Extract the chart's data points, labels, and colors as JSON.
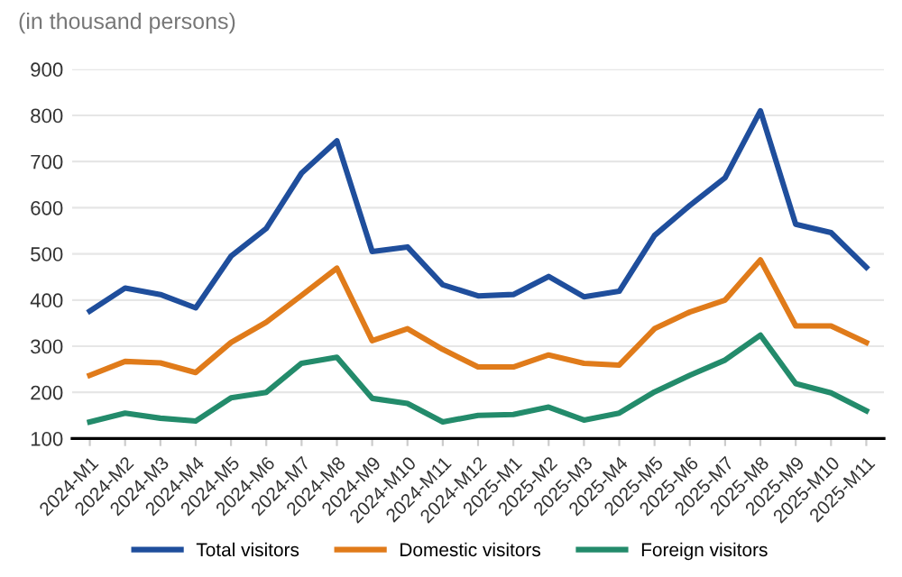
{
  "chart_data": {
    "type": "line",
    "subtitle": "(in thousand persons)",
    "categories": [
      "2024-M1",
      "2024-M2",
      "2024-M3",
      "2024-M4",
      "2024-M5",
      "2024-M6",
      "2024-M7",
      "2024-M8",
      "2024-M9",
      "2024-M10",
      "2024-M11",
      "2024-M12",
      "2025-M1",
      "2025-M2",
      "2025-M3",
      "2025-M4",
      "2025-M5",
      "2025-M6",
      "2025-M7",
      "2025-M8",
      "2025-M9",
      "2025-M10",
      "2025-M11"
    ],
    "series": [
      {
        "name": "Total visitors",
        "color": "#1f4e9c",
        "values": [
          376,
          426,
          412,
          383,
          495,
          555,
          675,
          745,
          505,
          515,
          433,
          409,
          412,
          451,
          407,
          419,
          540,
          605,
          665,
          810,
          564,
          546,
          471
        ]
      },
      {
        "name": "Domestic visitors",
        "color": "#e07b1a",
        "values": [
          237,
          267,
          264,
          243,
          308,
          352,
          410,
          469,
          312,
          338,
          293,
          255,
          255,
          281,
          263,
          259,
          338,
          374,
          400,
          487,
          344,
          344,
          308
        ]
      },
      {
        "name": "Foreign visitors",
        "color": "#238b6b",
        "values": [
          136,
          155,
          144,
          138,
          188,
          200,
          263,
          276,
          187,
          176,
          136,
          150,
          152,
          168,
          140,
          155,
          201,
          237,
          270,
          324,
          219,
          199,
          160
        ]
      }
    ],
    "ylim": [
      100,
      900
    ],
    "yticks": [
      100,
      200,
      300,
      400,
      500,
      600,
      700,
      800,
      900
    ],
    "grid": "y",
    "legend": "bottom"
  }
}
